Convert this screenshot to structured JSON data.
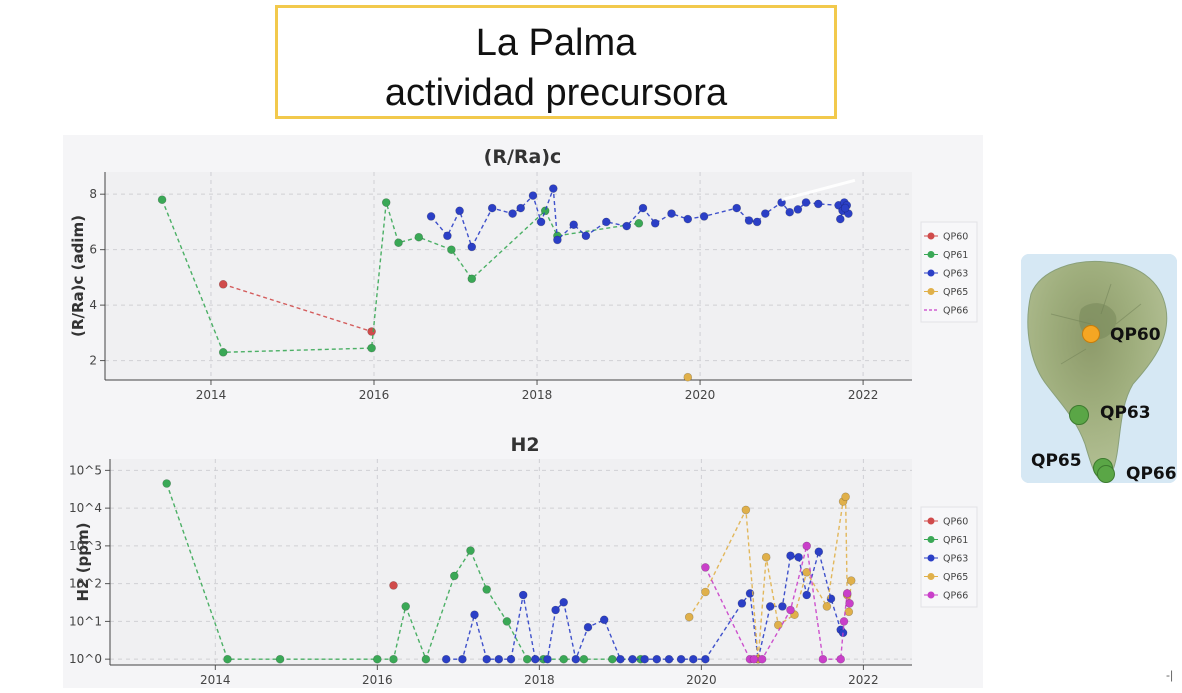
{
  "header": {
    "line1": "La Palma",
    "line2": "actividad precursora"
  },
  "colors": {
    "QP60": "#d04b4b",
    "QP61": "#3aa856",
    "QP63": "#2b3fc6",
    "QP65": "#e0b04a",
    "QP66": "#c93fc9"
  },
  "map": {
    "markers": [
      {
        "label": "QP60",
        "color": "#f5a623"
      },
      {
        "label": "QP63",
        "color": "#5aa646"
      },
      {
        "label": "QP65",
        "color": "#5aa646"
      },
      {
        "label": "QP66",
        "color": "#5aa646"
      }
    ]
  },
  "corner_mark": "-|",
  "chart_data": [
    {
      "type": "line",
      "title": "(R/Ra)c",
      "ylabel": "(R/Ra)c (adim)",
      "xlim": [
        2012.7,
        2022.6
      ],
      "ylim": [
        1.3,
        8.8
      ],
      "xticks": [
        "2014",
        "2016",
        "2018",
        "2020",
        "2022"
      ],
      "yticks": [
        "2",
        "4",
        "6",
        "8"
      ],
      "grid": true,
      "legend_position": "right",
      "legend": [
        "QP60",
        "QP61",
        "QP63",
        "QP65",
        "QP66"
      ],
      "series": [
        {
          "name": "QP60",
          "style": "line+markers",
          "x": [
            2014.15,
            2015.97
          ],
          "y": [
            4.75,
            3.05
          ]
        },
        {
          "name": "QP61",
          "style": "line+markers",
          "x": [
            2013.4,
            2014.15,
            2015.97,
            2016.15,
            2016.3,
            2016.55,
            2016.95,
            2017.2,
            2018.1,
            2018.25,
            2019.25
          ],
          "y": [
            7.8,
            2.3,
            2.45,
            7.7,
            6.25,
            6.45,
            6.0,
            4.95,
            7.4,
            6.5,
            6.95
          ]
        },
        {
          "name": "QP63",
          "style": "line+markers",
          "x": [
            2016.7,
            2016.9,
            2017.05,
            2017.2,
            2017.45,
            2017.7,
            2017.8,
            2017.95,
            2018.05,
            2018.2,
            2018.25,
            2018.45,
            2018.6,
            2018.85,
            2019.1,
            2019.3,
            2019.45,
            2019.65,
            2019.85,
            2020.05,
            2020.45,
            2020.6,
            2020.7,
            2020.8,
            2021.0,
            2021.1,
            2021.2,
            2021.3,
            2021.45,
            2021.7,
            2021.72,
            2021.75,
            2021.77,
            2021.8,
            2021.82,
            2021.78
          ],
          "y": [
            7.2,
            6.5,
            7.4,
            6.1,
            7.5,
            7.3,
            7.5,
            7.95,
            7.0,
            8.2,
            6.35,
            6.9,
            6.5,
            7.0,
            6.85,
            7.5,
            6.95,
            7.3,
            7.1,
            7.2,
            7.5,
            7.05,
            7.0,
            7.3,
            7.7,
            7.35,
            7.45,
            7.7,
            7.65,
            7.6,
            7.1,
            7.4,
            7.7,
            7.6,
            7.3,
            7.5
          ]
        },
        {
          "name": "QP65",
          "style": "markers",
          "x": [
            2019.85
          ],
          "y": [
            1.4
          ]
        },
        {
          "name": "QP66",
          "style": "dashed-line",
          "x": [
            2021.0,
            2021.9
          ],
          "y": [
            7.8,
            8.5
          ],
          "color": "#ffffff"
        }
      ]
    },
    {
      "type": "line",
      "title": "H2",
      "ylabel": "H2 (ppm)",
      "yscale": "log",
      "xlim": [
        2012.7,
        2022.6
      ],
      "ylim": [
        0.7,
        200000
      ],
      "xticks": [
        "2014",
        "2016",
        "2018",
        "2020",
        "2022"
      ],
      "yticks": [
        "10^0",
        "10^1",
        "10^2",
        "10^3",
        "10^4",
        "10^5"
      ],
      "grid": true,
      "legend_position": "right",
      "legend": [
        "QP60",
        "QP61",
        "QP63",
        "QP65",
        "QP66"
      ],
      "series": [
        {
          "name": "QP60",
          "style": "markers",
          "x": [
            2016.2
          ],
          "y": [
            90
          ]
        },
        {
          "name": "QP61",
          "style": "line+markers",
          "x": [
            2013.4,
            2014.15,
            2014.8,
            2016.0,
            2016.2,
            2016.35,
            2016.6,
            2016.95,
            2017.15,
            2017.35,
            2017.6,
            2017.85,
            2018.05,
            2018.3,
            2018.55,
            2018.9,
            2019.25
          ],
          "y": [
            45000,
            1,
            1,
            1,
            1,
            25,
            1,
            160,
            750,
            70,
            10,
            1,
            1,
            1,
            1,
            1,
            1
          ]
        },
        {
          "name": "QP63",
          "style": "line+markers",
          "x": [
            2016.85,
            2017.05,
            2017.2,
            2017.35,
            2017.5,
            2017.65,
            2017.8,
            2017.95,
            2018.1,
            2018.2,
            2018.3,
            2018.45,
            2018.6,
            2018.8,
            2019.0,
            2019.15,
            2019.3,
            2019.45,
            2019.6,
            2019.75,
            2019.9,
            2020.05,
            2020.5,
            2020.6,
            2020.7,
            2020.85,
            2021.0,
            2021.1,
            2021.2,
            2021.3,
            2021.45,
            2021.6,
            2021.72,
            2021.75
          ],
          "y": [
            1,
            1,
            15,
            1,
            1,
            1,
            50,
            1,
            1,
            20,
            32,
            1,
            7,
            11,
            1,
            1,
            1,
            1,
            1,
            1,
            1,
            1,
            30,
            55,
            1,
            25,
            25,
            550,
            500,
            50,
            700,
            40,
            6,
            5
          ]
        },
        {
          "name": "QP65",
          "style": "line+markers",
          "x": [
            2019.85,
            2020.05,
            2020.55,
            2020.7,
            2020.8,
            2020.95,
            2021.15,
            2021.3,
            2021.55,
            2021.75,
            2021.78,
            2021.8,
            2021.82,
            2021.85
          ],
          "y": [
            13,
            60,
            9000,
            1,
            500,
            8,
            15,
            200,
            25,
            15000,
            20000,
            50,
            18,
            120
          ]
        },
        {
          "name": "QP66",
          "style": "line+markers",
          "x": [
            2020.05,
            2020.6,
            2020.65,
            2020.75,
            2021.1,
            2021.3,
            2021.5,
            2021.72,
            2021.76,
            2021.8,
            2021.83
          ],
          "y": [
            270,
            1,
            1,
            1,
            20,
            1000,
            1,
            1,
            10,
            55,
            30
          ]
        }
      ]
    }
  ]
}
